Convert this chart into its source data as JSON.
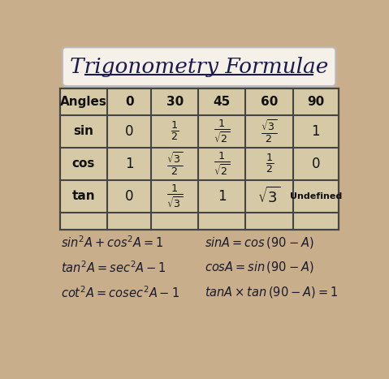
{
  "title": "Trigonometry Formulae",
  "bg_color": "#c8ae8a",
  "title_bg_color": "#f5f0e8",
  "text_color": "#1a1a4e",
  "formula_color": "#1a1a2e",
  "col_headers": [
    "Angles",
    "0",
    "30",
    "45",
    "60",
    "90"
  ],
  "row_headers": [
    "sin",
    "cos",
    "tan"
  ],
  "cell_data_plain": [
    [
      "0",
      "",
      "",
      "",
      "1"
    ],
    [
      "1",
      "",
      "",
      "",
      "0"
    ],
    [
      "0",
      "",
      "1",
      "",
      "Undefined"
    ]
  ],
  "formulas_left": [
    "$sin^2A + cos^2A = 1$",
    "$tan^2A = sec^2A - 1$",
    "$cot^2A = cosec^2A - 1$"
  ],
  "formulas_right": [
    "$sinA = cos\\,(90 - A)$",
    "$cosA = sin\\,(90 - A)$",
    "$tanA \\times tan\\,(90 - A) = 1$"
  ]
}
